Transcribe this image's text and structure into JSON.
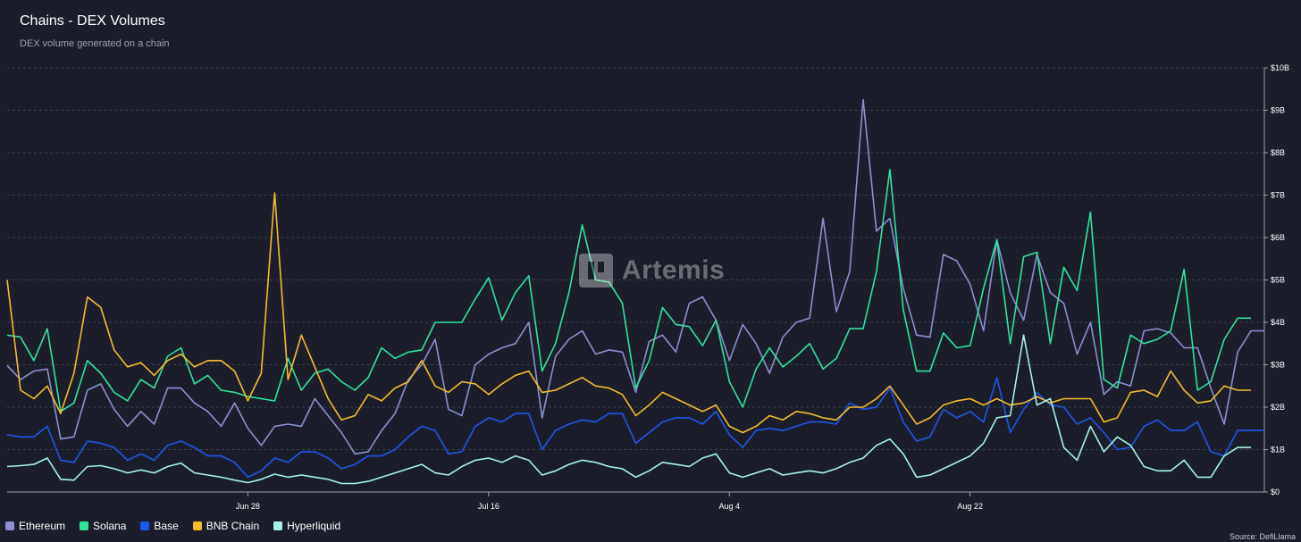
{
  "header": {
    "title": "Chains - DEX Volumes",
    "subtitle": "DEX volume generated on a chain"
  },
  "watermark": {
    "text": "Artemis",
    "icon": "artemis-logo-icon"
  },
  "source": "Source: DefiLlama",
  "chart_data": {
    "type": "line",
    "title": "Chains - DEX Volumes",
    "subtitle": "DEX volume generated on a chain",
    "x_start": "Jun 10",
    "x_end": "Sep 9",
    "x_ticks": [
      {
        "index": 18,
        "label": "Jun 28"
      },
      {
        "index": 36,
        "label": "Jul 16"
      },
      {
        "index": 54,
        "label": "Aug 4"
      },
      {
        "index": 72,
        "label": "Aug 22"
      }
    ],
    "y_axis": {
      "position": "right",
      "ylim": [
        0,
        10
      ],
      "unit": "B",
      "ticks": [
        "$0",
        "$1B",
        "$2B",
        "$3B",
        "$4B",
        "$5B",
        "$6B",
        "$7B",
        "$8B",
        "$9B",
        "$10B"
      ]
    },
    "grid": true,
    "legend": "bottom-left",
    "series": [
      {
        "name": "Ethereum",
        "color": "#8a8fd0",
        "values": [
          2.98,
          2.65,
          2.85,
          2.9,
          1.25,
          1.3,
          2.4,
          2.55,
          1.95,
          1.55,
          1.9,
          1.6,
          2.45,
          2.45,
          2.1,
          1.9,
          1.55,
          2.1,
          1.5,
          1.1,
          1.55,
          1.6,
          1.55,
          2.2,
          1.8,
          1.4,
          0.9,
          0.95,
          1.45,
          1.85,
          2.65,
          3.0,
          3.6,
          1.95,
          1.8,
          3.0,
          3.25,
          3.4,
          3.5,
          4.0,
          1.75,
          3.2,
          3.6,
          3.8,
          3.25,
          3.35,
          3.3,
          2.35,
          3.55,
          3.7,
          3.3,
          4.45,
          4.6,
          4.05,
          3.1,
          3.95,
          3.5,
          2.8,
          3.65,
          4.0,
          4.1,
          6.45,
          4.25,
          5.2,
          9.25,
          6.15,
          6.45,
          4.8,
          3.7,
          3.65,
          5.6,
          5.45,
          4.9,
          3.8,
          5.95,
          4.7,
          4.05,
          5.6,
          4.7,
          4.45,
          3.25,
          4.0,
          2.3,
          2.6,
          2.5,
          3.8,
          3.85,
          3.75,
          3.4,
          3.4,
          2.45,
          1.6,
          3.3,
          3.8,
          3.8
        ]
      },
      {
        "name": "Solana",
        "color": "#2fe39a",
        "values": [
          3.7,
          3.65,
          3.1,
          3.85,
          1.9,
          2.1,
          3.1,
          2.8,
          2.35,
          2.15,
          2.65,
          2.45,
          3.2,
          3.4,
          2.55,
          2.75,
          2.4,
          2.35,
          2.25,
          2.2,
          2.15,
          3.15,
          2.4,
          2.8,
          2.9,
          2.6,
          2.4,
          2.7,
          3.4,
          3.15,
          3.3,
          3.35,
          4.0,
          4.0,
          4.0,
          4.55,
          5.05,
          4.05,
          4.7,
          5.1,
          2.85,
          3.5,
          4.7,
          6.3,
          5.0,
          4.95,
          4.45,
          2.45,
          3.1,
          4.35,
          3.95,
          3.9,
          3.45,
          4.05,
          2.6,
          2.0,
          2.9,
          3.4,
          2.95,
          3.2,
          3.5,
          2.9,
          3.15,
          3.85,
          3.85,
          5.2,
          7.6,
          4.3,
          2.85,
          2.85,
          3.75,
          3.4,
          3.45,
          4.8,
          5.95,
          3.5,
          5.55,
          5.65,
          3.5,
          5.3,
          4.75,
          6.6,
          2.65,
          2.45,
          3.7,
          3.5,
          3.6,
          3.8,
          5.25,
          2.4,
          2.6,
          3.6,
          4.1,
          4.1
        ]
      },
      {
        "name": "Base",
        "color": "#1f55e8",
        "values": [
          1.35,
          1.3,
          1.3,
          1.55,
          0.75,
          0.7,
          1.2,
          1.15,
          1.05,
          0.75,
          0.9,
          0.75,
          1.1,
          1.2,
          1.05,
          0.85,
          0.85,
          0.7,
          0.35,
          0.5,
          0.8,
          0.7,
          0.95,
          0.95,
          0.8,
          0.55,
          0.65,
          0.85,
          0.85,
          1.0,
          1.3,
          1.55,
          1.45,
          0.9,
          0.95,
          1.55,
          1.75,
          1.65,
          1.85,
          1.85,
          1.0,
          1.45,
          1.6,
          1.7,
          1.65,
          1.85,
          1.85,
          1.15,
          1.4,
          1.65,
          1.75,
          1.75,
          1.6,
          1.9,
          1.35,
          1.05,
          1.45,
          1.5,
          1.45,
          1.55,
          1.65,
          1.65,
          1.6,
          2.1,
          1.95,
          2.0,
          2.45,
          1.65,
          1.2,
          1.3,
          1.95,
          1.75,
          1.9,
          1.65,
          2.7,
          1.4,
          1.95,
          2.35,
          2.05,
          2.0,
          1.6,
          1.75,
          1.4,
          1.0,
          1.05,
          1.55,
          1.7,
          1.45,
          1.45,
          1.65,
          0.95,
          0.85,
          1.45,
          1.45,
          1.45
        ]
      },
      {
        "name": "BNB Chain",
        "color": "#f3ba2f",
        "values": [
          5.0,
          2.4,
          2.2,
          2.5,
          1.85,
          2.8,
          4.6,
          4.35,
          3.35,
          2.95,
          3.05,
          2.75,
          3.1,
          3.25,
          2.95,
          3.1,
          3.1,
          2.85,
          2.15,
          2.8,
          7.05,
          2.65,
          3.7,
          2.95,
          2.2,
          1.7,
          1.8,
          2.3,
          2.15,
          2.45,
          2.6,
          3.1,
          2.5,
          2.35,
          2.6,
          2.55,
          2.3,
          2.55,
          2.75,
          2.85,
          2.35,
          2.4,
          2.55,
          2.7,
          2.5,
          2.45,
          2.3,
          1.8,
          2.05,
          2.35,
          2.2,
          2.05,
          1.9,
          2.05,
          1.55,
          1.4,
          1.55,
          1.8,
          1.7,
          1.9,
          1.85,
          1.75,
          1.7,
          2.0,
          2.0,
          2.2,
          2.5,
          2.05,
          1.6,
          1.75,
          2.05,
          2.15,
          2.2,
          2.05,
          2.2,
          2.05,
          2.1,
          2.25,
          2.1,
          2.2,
          2.2,
          2.2,
          1.65,
          1.75,
          2.35,
          2.4,
          2.25,
          2.85,
          2.4,
          2.1,
          2.15,
          2.5,
          2.4,
          2.4
        ]
      },
      {
        "name": "Hyperliquid",
        "color": "#a7f3e6",
        "values": [
          0.6,
          0.62,
          0.65,
          0.8,
          0.3,
          0.28,
          0.6,
          0.62,
          0.55,
          0.45,
          0.52,
          0.45,
          0.6,
          0.68,
          0.45,
          0.4,
          0.35,
          0.28,
          0.22,
          0.3,
          0.42,
          0.35,
          0.4,
          0.35,
          0.3,
          0.2,
          0.2,
          0.25,
          0.35,
          0.45,
          0.55,
          0.65,
          0.45,
          0.4,
          0.6,
          0.75,
          0.8,
          0.7,
          0.85,
          0.75,
          0.4,
          0.5,
          0.65,
          0.75,
          0.7,
          0.6,
          0.55,
          0.35,
          0.5,
          0.7,
          0.65,
          0.6,
          0.8,
          0.9,
          0.45,
          0.35,
          0.45,
          0.55,
          0.4,
          0.45,
          0.5,
          0.45,
          0.55,
          0.7,
          0.8,
          1.1,
          1.25,
          0.9,
          0.35,
          0.4,
          0.55,
          0.7,
          0.85,
          1.15,
          1.75,
          1.8,
          3.7,
          2.05,
          2.2,
          1.05,
          0.75,
          1.55,
          0.95,
          1.3,
          1.1,
          0.6,
          0.5,
          0.5,
          0.75,
          0.35,
          0.35,
          0.85,
          1.05,
          1.05
        ]
      }
    ]
  }
}
